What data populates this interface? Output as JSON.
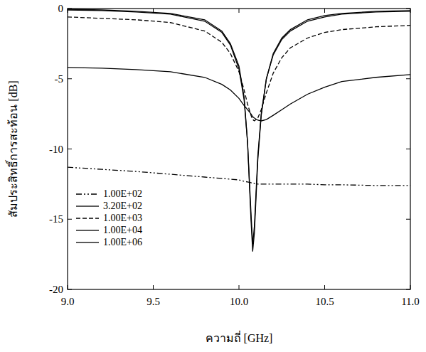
{
  "chart_data": {
    "type": "line",
    "x_label": "ความถี่ [GHz]",
    "y_label": "สัมประสิทธิ์การสะท้อน [dB]",
    "x": [
      9.0,
      9.2,
      9.4,
      9.6,
      9.8,
      9.9,
      9.95,
      10.0,
      10.03,
      10.05,
      10.07,
      10.08,
      10.09,
      10.11,
      10.13,
      10.16,
      10.2,
      10.25,
      10.3,
      10.4,
      10.5,
      10.6,
      10.8,
      11.0
    ],
    "series": [
      {
        "name": "1.00E+02",
        "color": "#000000",
        "line_style": "dashdot",
        "values": [
          -11.3,
          -11.45,
          -11.6,
          -11.8,
          -12.0,
          -12.1,
          -12.15,
          -12.2,
          -12.3,
          -12.35,
          -12.4,
          -12.45,
          -12.45,
          -12.5,
          -12.5,
          -12.5,
          -12.5,
          -12.5,
          -12.5,
          -12.5,
          -12.55,
          -12.55,
          -12.6,
          -12.6
        ]
      },
      {
        "name": "3.20E+02",
        "color": "#000000",
        "line_style": "solid",
        "values": [
          -4.2,
          -4.25,
          -4.35,
          -4.5,
          -4.9,
          -5.4,
          -5.8,
          -6.4,
          -6.9,
          -7.2,
          -7.5,
          -7.7,
          -7.8,
          -7.95,
          -8.0,
          -7.9,
          -7.6,
          -7.2,
          -6.8,
          -6.1,
          -5.6,
          -5.2,
          -4.9,
          -4.7
        ]
      },
      {
        "name": "1.00E+03",
        "color": "#000000",
        "line_style": "dashed",
        "values": [
          -0.6,
          -0.7,
          -0.8,
          -1.0,
          -1.6,
          -2.4,
          -3.2,
          -4.5,
          -5.8,
          -6.8,
          -7.6,
          -7.9,
          -8.0,
          -7.8,
          -7.2,
          -6.0,
          -4.6,
          -3.5,
          -2.8,
          -2.1,
          -1.7,
          -1.5,
          -1.3,
          -1.2
        ]
      },
      {
        "name": "1.00E+04",
        "color": "#000000",
        "line_style": "solid",
        "values": [
          -0.1,
          -0.15,
          -0.25,
          -0.4,
          -0.9,
          -1.7,
          -2.6,
          -4.3,
          -6.5,
          -9.5,
          -14.5,
          -16.8,
          -15.5,
          -10.5,
          -7.5,
          -5.0,
          -3.3,
          -2.2,
          -1.6,
          -0.9,
          -0.6,
          -0.4,
          -0.25,
          -0.2
        ]
      },
      {
        "name": "1.00E+06",
        "color": "#000000",
        "line_style": "solid",
        "values": [
          -0.05,
          -0.1,
          -0.2,
          -0.35,
          -0.8,
          -1.6,
          -2.5,
          -4.1,
          -6.3,
          -9.5,
          -15.0,
          -17.3,
          -16.0,
          -10.8,
          -7.6,
          -5.0,
          -3.2,
          -2.1,
          -1.5,
          -0.8,
          -0.5,
          -0.35,
          -0.2,
          -0.15
        ]
      }
    ],
    "xlim": [
      9.0,
      11.0
    ],
    "xticks": [
      {
        "value": 9.0,
        "label": "9.0"
      },
      {
        "value": 9.5,
        "label": "9.5"
      },
      {
        "value": 10.0,
        "label": "10.0"
      },
      {
        "value": 10.5,
        "label": "10.5"
      },
      {
        "value": 11.0,
        "label": "11.0"
      }
    ],
    "ylim": [
      -20,
      0
    ],
    "yticks": [
      0,
      -5,
      -10,
      -15,
      -20
    ],
    "grid": false,
    "legend": "lower left"
  }
}
